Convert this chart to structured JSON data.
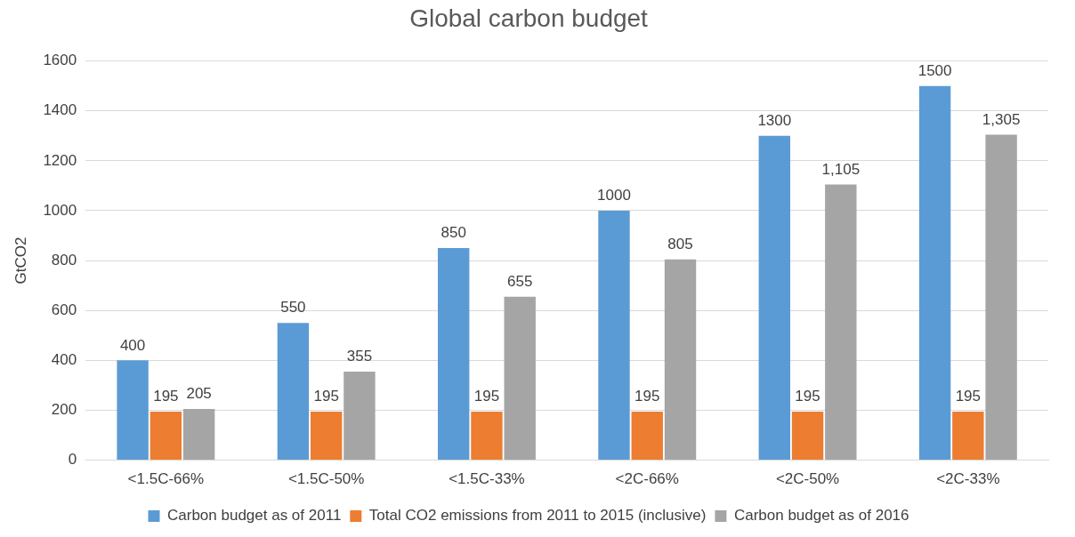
{
  "chart_data": {
    "type": "bar",
    "title": "Global carbon budget",
    "ylabel": "GtCO2",
    "categories": [
      "<1.5C-66%",
      "<1.5C-50%",
      "<1.5C-33%",
      "<2C-66%",
      "<2C-50%",
      "<2C-33%"
    ],
    "series": [
      {
        "name": "Carbon budget as of 2011",
        "color": "#5b9bd5",
        "values": [
          400,
          550,
          850,
          1000,
          1300,
          1500
        ],
        "value_labels": [
          "400",
          "550",
          "850",
          "1000",
          "1300",
          "1500"
        ]
      },
      {
        "name": "Total CO2 emissions from 2011 to 2015 (inclusive)",
        "color": "#ed7d31",
        "values": [
          195,
          195,
          195,
          195,
          195,
          195
        ],
        "value_labels": [
          "195",
          "195",
          "195",
          "195",
          "195",
          "195"
        ]
      },
      {
        "name": "Carbon budget as of 2016",
        "color": "#a5a5a5",
        "values": [
          205,
          355,
          655,
          805,
          1105,
          1305
        ],
        "value_labels": [
          "205",
          "355",
          "655",
          "805",
          "1,105",
          "1,305"
        ]
      }
    ],
    "ylim": [
      0,
      1600
    ],
    "yticks": [
      0,
      200,
      400,
      600,
      800,
      1000,
      1200,
      1400,
      1600
    ],
    "grid": "y",
    "legend": "bottom"
  }
}
